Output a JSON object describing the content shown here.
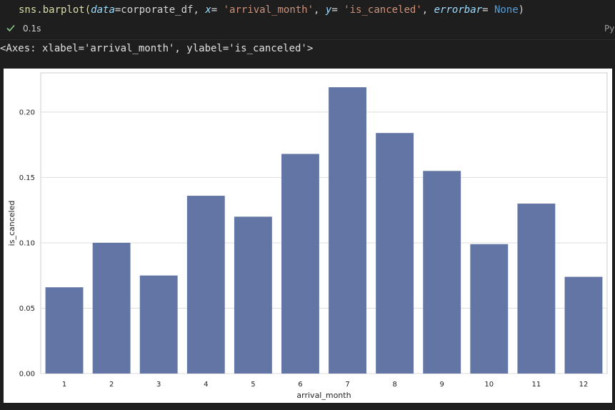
{
  "code": {
    "fn": "sns.barplot(",
    "p1": "data",
    "v1": "=corporate_df, ",
    "p2": "x",
    "v2": "= ",
    "s1": "'arrival_month'",
    "c2": ", ",
    "p3": "y",
    "v3": "= ",
    "s2": "'is_canceled'",
    "c3": ", ",
    "p4": "errorbar",
    "v4": "= ",
    "k4": "None",
    "end": ")"
  },
  "execution": {
    "status_icon": "check-icon",
    "time": "0.1s",
    "language": "Py"
  },
  "output": {
    "repr": "<Axes: xlabel='arrival_month', ylabel='is_canceled'>"
  },
  "colors": {
    "bar": "#6375a4",
    "grid": "#dddddd",
    "check": "#89d185"
  },
  "chart_data": {
    "type": "bar",
    "categories": [
      "1",
      "2",
      "3",
      "4",
      "5",
      "6",
      "7",
      "8",
      "9",
      "10",
      "11",
      "12"
    ],
    "values": [
      0.066,
      0.1,
      0.075,
      0.136,
      0.12,
      0.168,
      0.219,
      0.184,
      0.155,
      0.099,
      0.13,
      0.074
    ],
    "xlabel": "arrival_month",
    "ylabel": "is_canceled",
    "ylim": [
      0,
      0.23
    ],
    "yticks": [
      0.0,
      0.05,
      0.1,
      0.15,
      0.2
    ],
    "ytick_labels": [
      "0.00",
      "0.05",
      "0.10",
      "0.15",
      "0.20"
    ],
    "grid": "horizontal"
  }
}
